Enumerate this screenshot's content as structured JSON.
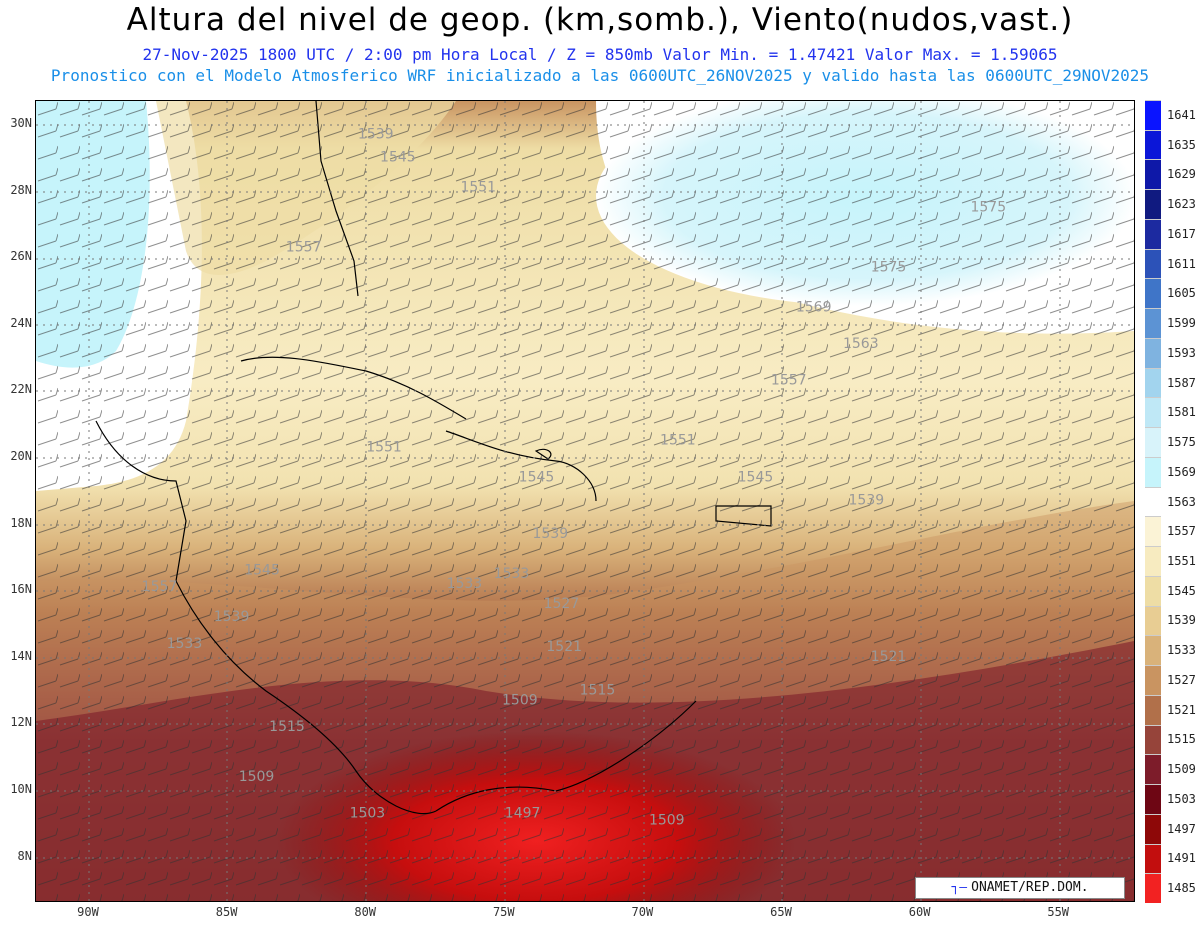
{
  "header": {
    "title": "Altura del nivel de geop. (km,somb.), Viento(nudos,vast.)",
    "subtitle": "27-Nov-2025  1800 UTC / 2:00 pm Hora Local / Z = 850mb    Valor Min. = 1.47421  Valor Max. = 1.59065",
    "forecast_line": "Pronostico con el Modelo Atmosferico WRF inicializado a las 0600UTC_26NOV2025 y valido hasta las  0600UTC_29NOV2025"
  },
  "axes": {
    "lat_labels": [
      "30N",
      "28N",
      "26N",
      "24N",
      "22N",
      "20N",
      "18N",
      "16N",
      "14N",
      "12N",
      "10N",
      "8N"
    ],
    "lon_labels": [
      "90W",
      "85W",
      "80W",
      "75W",
      "70W",
      "65W",
      "60W",
      "55W"
    ]
  },
  "colorbar": {
    "labels": [
      "1641",
      "1635",
      "1629",
      "1623",
      "1617",
      "1611",
      "1605",
      "1599",
      "1593",
      "1587",
      "1581",
      "1575",
      "1569",
      "1563",
      "1557",
      "1551",
      "1545",
      "1539",
      "1533",
      "1527",
      "1521",
      "1515",
      "1509",
      "1503",
      "1497",
      "1491",
      "1485"
    ],
    "colors": [
      "#0a14ff",
      "#0b16d8",
      "#0e18a8",
      "#101a80",
      "#1c2aa0",
      "#2c52b8",
      "#3f75c8",
      "#5c93d4",
      "#7fb3e0",
      "#a2d4ee",
      "#bfe8f6",
      "#d8f3fa",
      "#c6f4fb",
      "#ffffff",
      "#fbf3d6",
      "#f7ebc0",
      "#eedda5",
      "#e8cd93",
      "#d9b27a",
      "#c99461",
      "#b1704a",
      "#96443a",
      "#7d1c2a",
      "#6e0614",
      "#8e0808",
      "#c20e0e",
      "#f22222"
    ]
  },
  "map_labels": [
    {
      "text": "1539",
      "lon": -80.3,
      "lat": 29.6
    },
    {
      "text": "1545",
      "lon": -79.5,
      "lat": 28.9
    },
    {
      "text": "1551",
      "lon": -76.6,
      "lat": 28.0
    },
    {
      "text": "1557",
      "lon": -82.9,
      "lat": 26.2
    },
    {
      "text": "1551",
      "lon": -80.0,
      "lat": 20.2
    },
    {
      "text": "1545",
      "lon": -74.5,
      "lat": 19.3
    },
    {
      "text": "1539",
      "lon": -74.0,
      "lat": 17.6
    },
    {
      "text": "1533",
      "lon": -75.4,
      "lat": 16.4
    },
    {
      "text": "1527",
      "lon": -73.6,
      "lat": 15.5
    },
    {
      "text": "1521",
      "lon": -73.5,
      "lat": 14.2
    },
    {
      "text": "1515",
      "lon": -72.3,
      "lat": 12.9
    },
    {
      "text": "1509",
      "lon": -75.1,
      "lat": 12.6
    },
    {
      "text": "1515",
      "lon": -83.5,
      "lat": 11.8
    },
    {
      "text": "1509",
      "lon": -84.6,
      "lat": 10.3
    },
    {
      "text": "1503",
      "lon": -80.6,
      "lat": 9.2
    },
    {
      "text": "1497",
      "lon": -75.0,
      "lat": 9.2
    },
    {
      "text": "1509",
      "lon": -69.8,
      "lat": 9.0
    },
    {
      "text": "1545",
      "lon": -84.4,
      "lat": 16.5
    },
    {
      "text": "1539",
      "lon": -85.5,
      "lat": 15.1
    },
    {
      "text": "1533",
      "lon": -87.2,
      "lat": 14.3
    },
    {
      "text": "1551",
      "lon": -69.4,
      "lat": 20.4
    },
    {
      "text": "1545",
      "lon": -66.6,
      "lat": 19.3
    },
    {
      "text": "1539",
      "lon": -62.6,
      "lat": 18.6
    },
    {
      "text": "1521",
      "lon": -61.8,
      "lat": 13.9
    },
    {
      "text": "1557",
      "lon": -65.4,
      "lat": 22.2
    },
    {
      "text": "1563",
      "lon": -62.8,
      "lat": 23.3
    },
    {
      "text": "1569",
      "lon": -64.5,
      "lat": 24.4
    },
    {
      "text": "1575",
      "lon": -61.8,
      "lat": 25.6
    },
    {
      "text": "1575",
      "lon": -58.2,
      "lat": 27.4
    },
    {
      "text": "1557",
      "lon": -88.1,
      "lat": 16.0
    },
    {
      "text": "1533",
      "lon": -77.1,
      "lat": 16.1
    }
  ],
  "credit": {
    "symbol": "┐—",
    "text": "ONAMET/REP.DOM."
  }
}
